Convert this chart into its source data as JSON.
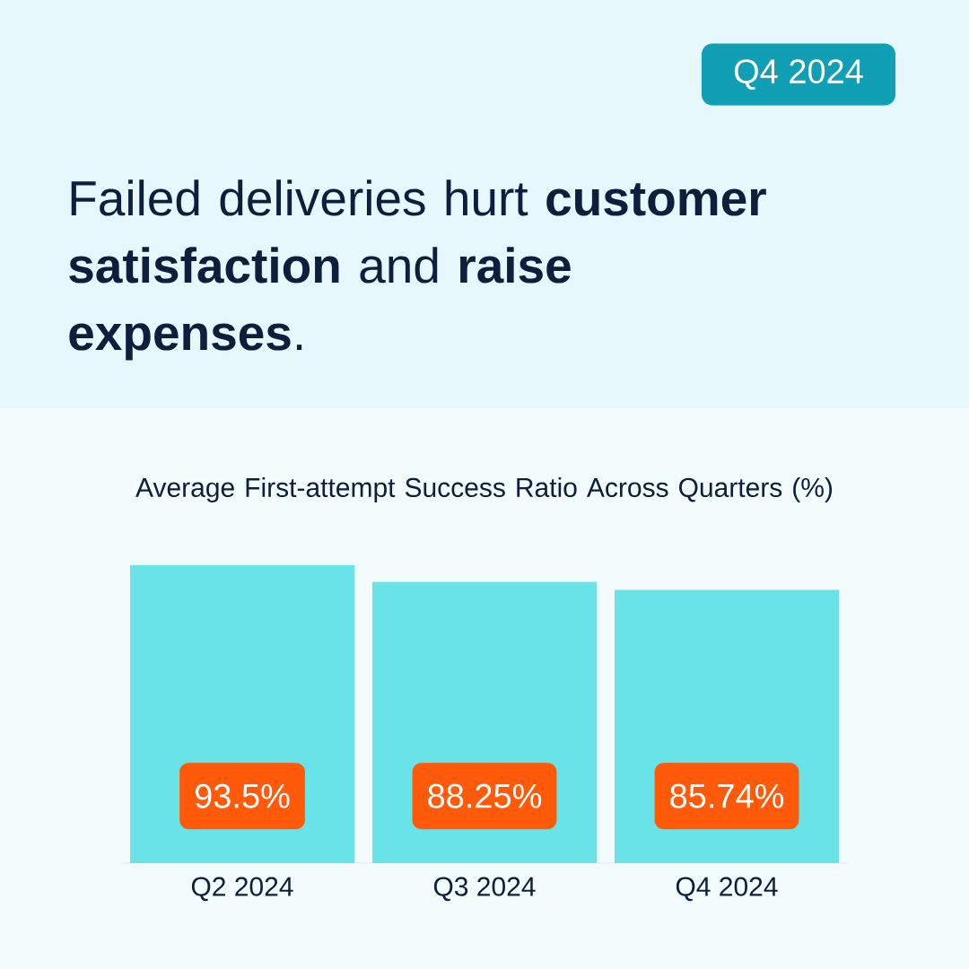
{
  "chart_data": {
    "type": "bar",
    "title": "Failed deliveries hurt **customer satisfaction** and **raise expenses**.",
    "subtitle": "Average First-attempt Success Ratio Across Quarters (%)",
    "annotations": [
      "Q4 2024"
    ],
    "categories": [
      "Q2 2024",
      "Q3 2024",
      "Q4 2024"
    ],
    "values": [
      93.5,
      88.25,
      85.74
    ],
    "value_labels": [
      "93.5%",
      "88.25%",
      "85.74%"
    ],
    "color": "#6ae3e8",
    "tick_labels": "x"
  }
}
